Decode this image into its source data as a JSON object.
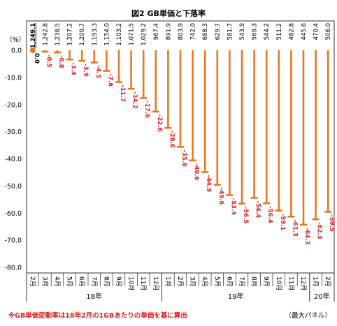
{
  "chart_data": {
    "type": "line",
    "title": "図2 GB単価と下落率",
    "y_unit": "（%）",
    "ylim": [
      -80,
      0
    ],
    "yticks": [
      "0.0",
      "-10.0",
      "-20.0",
      "-30.0",
      "-40.0",
      "-50.0",
      "-60.0",
      "-70.0",
      "-80.0"
    ],
    "grid": false,
    "months": [
      "2月",
      "3月",
      "4月",
      "5月",
      "6月",
      "7月",
      "8月",
      "9月",
      "10月",
      "11月",
      "12月",
      "1月",
      "2月",
      "3月",
      "4月",
      "5月",
      "6月",
      "7月",
      "8月",
      "9月",
      "10月",
      "11月",
      "12月",
      "1月",
      "2月"
    ],
    "year_groups": [
      {
        "label": "18年",
        "count": 11
      },
      {
        "label": "19年",
        "count": 12
      },
      {
        "label": "20年",
        "count": 2
      }
    ],
    "unit_prices": [
      "1,249.1",
      "1,242.8",
      "1,238.5",
      "1,207.2",
      "1,200.7",
      "1,193.3",
      "1,154.0",
      "1,103.2",
      "1,071.5",
      "1,029.2",
      "967.4",
      "891.9",
      "803.9",
      "742.0",
      "688.3",
      "629.7",
      "581.7",
      "543.9",
      "569.3",
      "544.2",
      "511.2",
      "482.8",
      "445.6",
      "470.4",
      "506.0"
    ],
    "values": [
      0.0,
      -0.5,
      -0.8,
      -3.4,
      -3.9,
      -4.5,
      -7.6,
      -11.7,
      -14.2,
      -17.6,
      -22.6,
      -28.6,
      -35.6,
      -40.6,
      -44.9,
      -49.6,
      -53.4,
      -56.5,
      -54.4,
      -56.4,
      -59.1,
      -61.3,
      -64.3,
      -62.3,
      -59.5
    ],
    "value_labels": [
      "0.0",
      "-0.5",
      "-0.8",
      "-3.4",
      "-3.9",
      "-4.5",
      "-7.6",
      "-11.7",
      "-14.2",
      "-17.6",
      "-22.6",
      "-28.6",
      "-35.6",
      "-40.6",
      "-44.9",
      "-49.6",
      "-53.4",
      "-56.5",
      "-54.4",
      "-56.4",
      "-59.1",
      "-61.3",
      "-64.3",
      "-62.3",
      "-59.5"
    ],
    "colors": {
      "bar": "#e87722",
      "first_marker": "#e87722",
      "value_label": "#e02020"
    },
    "note": "※GB単価変動率は18年2月の1GBあたりの単価を基に算出",
    "source": "（最大パネル）"
  }
}
